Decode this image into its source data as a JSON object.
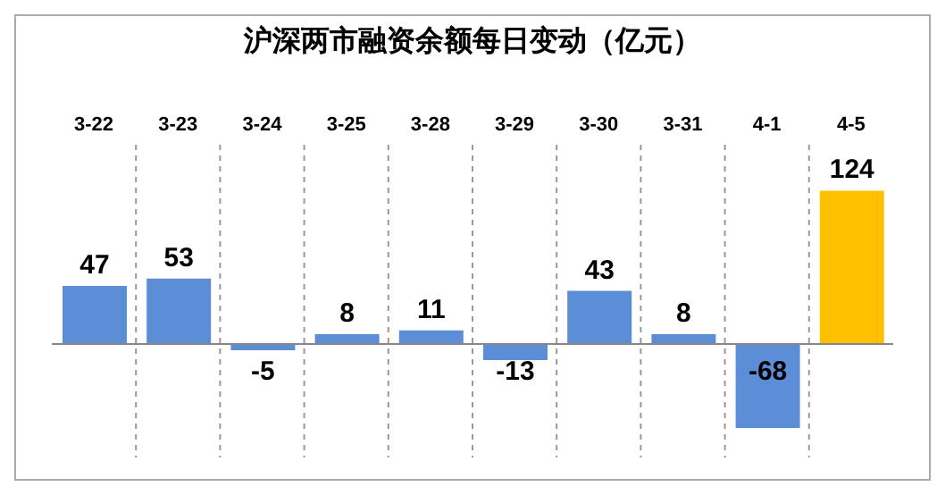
{
  "chart_data": {
    "type": "bar",
    "title": "沪深两市融资余额每日变动（亿元）",
    "categories": [
      "3-22",
      "3-23",
      "3-24",
      "3-25",
      "3-28",
      "3-29",
      "3-30",
      "3-31",
      "4-1",
      "4-5"
    ],
    "values": [
      47,
      53,
      -5,
      8,
      11,
      -13,
      43,
      8,
      -68,
      124
    ],
    "colors": [
      "#5b8ed6",
      "#5b8ed6",
      "#5b8ed6",
      "#5b8ed6",
      "#5b8ed6",
      "#5b8ed6",
      "#5b8ed6",
      "#5b8ed6",
      "#5b8ed6",
      "#ffc000"
    ],
    "data_labels": true,
    "grid": "x",
    "tick_labels": "x"
  }
}
